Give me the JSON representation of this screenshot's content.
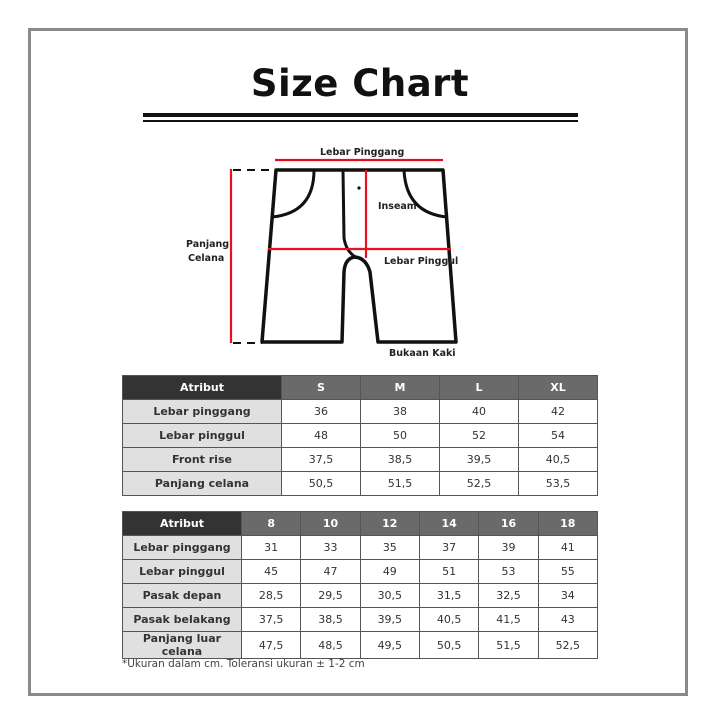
{
  "title": "Size Chart",
  "diagram": {
    "labels": {
      "waist": "Lebar Pinggang",
      "inseam": "Inseam",
      "length_line1": "Panjang",
      "length_line2": "Celana",
      "hip": "Lebar Pinggul",
      "leg_opening": "Bukaan Kaki"
    },
    "colors": {
      "measure_line": "#e8101e",
      "outline": "#111111"
    }
  },
  "table1": {
    "headers": [
      "Atribut",
      "S",
      "M",
      "L",
      "XL"
    ],
    "rows": [
      [
        "Lebar pinggang",
        "36",
        "38",
        "40",
        "42"
      ],
      [
        "Lebar pinggul",
        "48",
        "50",
        "52",
        "54"
      ],
      [
        "Front rise",
        "37,5",
        "38,5",
        "39,5",
        "40,5"
      ],
      [
        "Panjang celana",
        "50,5",
        "51,5",
        "52,5",
        "53,5"
      ]
    ]
  },
  "table2": {
    "headers": [
      "Atribut",
      "8",
      "10",
      "12",
      "14",
      "16",
      "18"
    ],
    "rows": [
      [
        "Lebar pinggang",
        "31",
        "33",
        "35",
        "37",
        "39",
        "41"
      ],
      [
        "Lebar pinggul",
        "45",
        "47",
        "49",
        "51",
        "53",
        "55"
      ],
      [
        "Pasak depan",
        "28,5",
        "29,5",
        "30,5",
        "31,5",
        "32,5",
        "34"
      ],
      [
        "Pasak belakang",
        "37,5",
        "38,5",
        "39,5",
        "40,5",
        "41,5",
        "43"
      ],
      [
        "Panjang luar celana",
        "47,5",
        "48,5",
        "49,5",
        "50,5",
        "51,5",
        "52,5"
      ]
    ]
  },
  "footnote": "*Ukuran dalam cm. Toleransi ukuran ± 1-2 cm"
}
